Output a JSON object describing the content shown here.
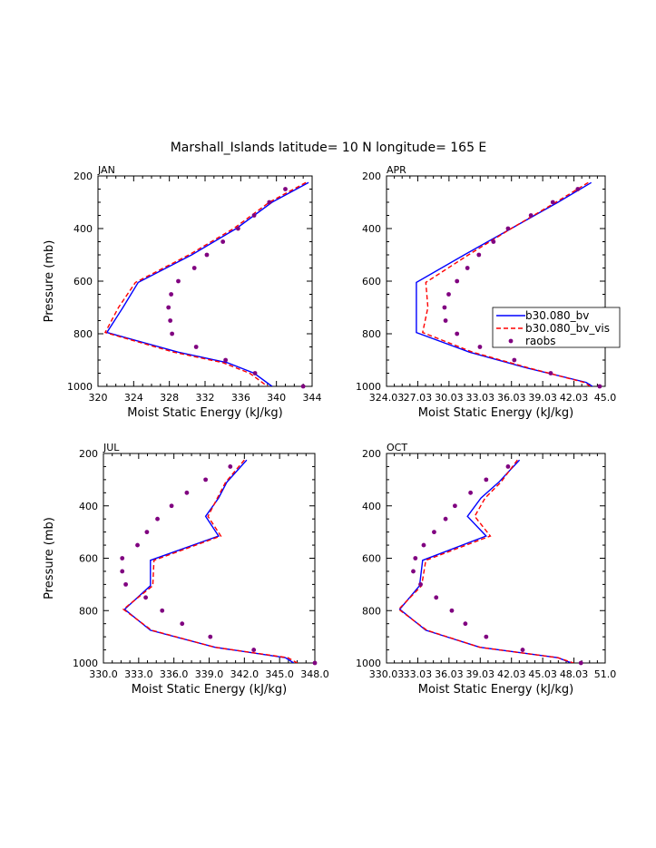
{
  "figure_title": "Marshall_Islands  latitude= 10 N longitude= 165 E",
  "legend": {
    "placement": "right-middle of APR panel",
    "entries": [
      {
        "label": "b30.080_bv",
        "color": "#0000ff",
        "style": "solid"
      },
      {
        "label": "b30.080_bv_vis",
        "color": "#ff0000",
        "style": "dashed"
      },
      {
        "label": "raobs",
        "color": "#800080",
        "style": "dots"
      }
    ]
  },
  "colors": {
    "model": "#0000ff",
    "vis": "#ff0000",
    "obs": "#800080"
  },
  "chart_data": [
    {
      "type": "line",
      "panel": "JAN",
      "xlabel": "Moist Static Energy (kJ/kg)",
      "ylabel": "Pressure (mb)",
      "xlim": [
        320,
        344
      ],
      "ylim": [
        1000,
        200
      ],
      "y_inverted": true,
      "xticks": [
        320,
        324,
        328,
        332,
        336,
        340,
        344
      ],
      "xtick_labels": [
        "320",
        "324",
        "328",
        "332",
        "336",
        "340",
        "344"
      ],
      "yticks": [
        200,
        400,
        600,
        800,
        1000
      ],
      "series": [
        {
          "name": "b30.080_bv",
          "x": [
            343.6,
            339.5,
            335.5,
            330.5,
            324.5,
            322.8,
            321.0,
            329.0,
            334.5,
            337.5,
            339.5
          ],
          "p": [
            225,
            300,
            400,
            500,
            605,
            700,
            795,
            870,
            910,
            950,
            1000
          ]
        },
        {
          "name": "b30.080_bv_vis",
          "x": [
            343.3,
            339.2,
            335.2,
            330.2,
            324.2,
            322.3,
            320.8,
            328.5,
            334.0,
            337.0,
            339.0
          ],
          "p": [
            225,
            300,
            400,
            500,
            605,
            700,
            795,
            870,
            910,
            950,
            1000
          ]
        },
        {
          "name": "raobs",
          "x": [
            341.0,
            339.2,
            337.5,
            335.7,
            334.0,
            332.2,
            330.8,
            329.0,
            328.2,
            327.9,
            328.1,
            328.3,
            331.0,
            334.3,
            337.6,
            343.0
          ],
          "p": [
            250,
            300,
            350,
            400,
            450,
            500,
            550,
            600,
            650,
            700,
            750,
            800,
            850,
            900,
            950,
            1000
          ]
        }
      ]
    },
    {
      "type": "line",
      "panel": "APR",
      "xlabel": "Moist Static Energy (kJ/kg)",
      "ylabel": "",
      "xlim": [
        324.03,
        345.03
      ],
      "ylim": [
        1000,
        200
      ],
      "y_inverted": true,
      "xticks": [
        324.03,
        327.03,
        330.03,
        333.03,
        336.03,
        339.03,
        342.03,
        345.03
      ],
      "xtick_labels": [
        "324.03",
        "27.03",
        "30.03",
        "33.03",
        "36.03",
        "39.03",
        "42.03",
        "45.0"
      ],
      "yticks": [
        200,
        400,
        600,
        800,
        1000
      ],
      "series": [
        {
          "name": "b30.080_bv",
          "x": [
            343.7,
            340.5,
            336.0,
            331.5,
            326.9,
            326.9,
            326.9,
            332.0,
            337.5,
            343.2,
            344.0
          ],
          "p": [
            225,
            300,
            400,
            500,
            605,
            700,
            795,
            870,
            930,
            985,
            1005
          ]
        },
        {
          "name": "b30.080_bv_vis",
          "x": [
            343.4,
            340.3,
            336.0,
            331.9,
            327.8,
            328.0,
            327.5,
            332.3,
            337.7,
            343.0,
            343.8
          ],
          "p": [
            225,
            300,
            400,
            500,
            605,
            700,
            795,
            870,
            930,
            985,
            1005
          ]
        },
        {
          "name": "raobs",
          "x": [
            342.4,
            340.0,
            337.9,
            335.7,
            334.3,
            332.9,
            331.8,
            330.8,
            330.0,
            329.6,
            329.7,
            330.8,
            333.0,
            336.3,
            339.8,
            344.5
          ],
          "p": [
            250,
            300,
            350,
            400,
            450,
            500,
            550,
            600,
            650,
            700,
            750,
            800,
            850,
            900,
            950,
            1000
          ]
        }
      ]
    },
    {
      "type": "line",
      "panel": "JUL",
      "xlabel": "Moist Static Energy (kJ/kg)",
      "ylabel": "Pressure (mb)",
      "xlim": [
        330.0,
        348.0
      ],
      "ylim": [
        1000,
        200
      ],
      "y_inverted": true,
      "xticks": [
        330,
        333,
        336,
        339,
        342,
        345,
        348
      ],
      "xtick_labels": [
        "330.0",
        "333.0",
        "336.0",
        "339.0",
        "342.0",
        "345.0",
        "348.0"
      ],
      "yticks": [
        200,
        400,
        600,
        800,
        1000
      ],
      "series": [
        {
          "name": "b30.080_bv",
          "x": [
            342.2,
            340.5,
            339.8,
            338.7,
            339.8,
            334.0,
            334.0,
            331.8,
            334.0,
            339.5,
            345.5,
            346.2
          ],
          "p": [
            225,
            310,
            370,
            440,
            515,
            608,
            705,
            795,
            875,
            940,
            980,
            1000
          ]
        },
        {
          "name": "b30.080_bv_vis",
          "x": [
            342.0,
            340.4,
            339.7,
            338.9,
            340.0,
            334.3,
            334.2,
            331.7,
            334.1,
            339.5,
            345.7,
            346.5
          ],
          "p": [
            225,
            310,
            370,
            440,
            515,
            608,
            705,
            795,
            875,
            940,
            980,
            1000
          ]
        },
        {
          "name": "raobs",
          "x": [
            340.8,
            338.7,
            337.1,
            335.8,
            334.6,
            333.7,
            332.9,
            331.6,
            331.6,
            331.9,
            333.6,
            335.0,
            336.7,
            339.1,
            342.8,
            348.0
          ],
          "p": [
            250,
            300,
            350,
            400,
            450,
            500,
            550,
            600,
            650,
            700,
            750,
            800,
            850,
            900,
            950,
            1000
          ]
        }
      ]
    },
    {
      "type": "line",
      "panel": "OCT",
      "xlabel": "Moist Static Energy (kJ/kg)",
      "ylabel": "",
      "xlim": [
        330.03,
        351.03
      ],
      "ylim": [
        1000,
        200
      ],
      "y_inverted": true,
      "xticks": [
        330.03,
        333.03,
        336.03,
        339.03,
        342.03,
        345.03,
        348.03,
        351.03
      ],
      "xtick_labels": [
        "330.03",
        "33.03",
        "36.03",
        "39.03",
        "42.03",
        "45.03",
        "48.03",
        "51.0"
      ],
      "yticks": [
        200,
        400,
        600,
        800,
        1000
      ],
      "series": [
        {
          "name": "b30.080_bv",
          "x": [
            342.8,
            340.8,
            339.1,
            337.8,
            339.6,
            333.5,
            333.2,
            331.3,
            333.8,
            339.0,
            346.5,
            347.8
          ],
          "p": [
            225,
            310,
            370,
            440,
            515,
            608,
            705,
            795,
            875,
            940,
            980,
            1000
          ]
        },
        {
          "name": "b30.080_bv_vis",
          "x": [
            342.6,
            341.0,
            339.5,
            338.5,
            340.0,
            333.8,
            333.4,
            331.2,
            333.9,
            339.0,
            346.5,
            348.0
          ],
          "p": [
            225,
            310,
            370,
            440,
            515,
            608,
            705,
            795,
            875,
            940,
            980,
            1000
          ]
        },
        {
          "name": "raobs",
          "x": [
            341.7,
            339.6,
            338.1,
            336.6,
            335.7,
            334.6,
            333.6,
            332.8,
            332.6,
            333.3,
            334.8,
            336.3,
            337.6,
            339.6,
            343.1,
            348.7
          ],
          "p": [
            250,
            300,
            350,
            400,
            450,
            500,
            550,
            600,
            650,
            700,
            750,
            800,
            850,
            900,
            950,
            1000
          ]
        }
      ]
    }
  ]
}
